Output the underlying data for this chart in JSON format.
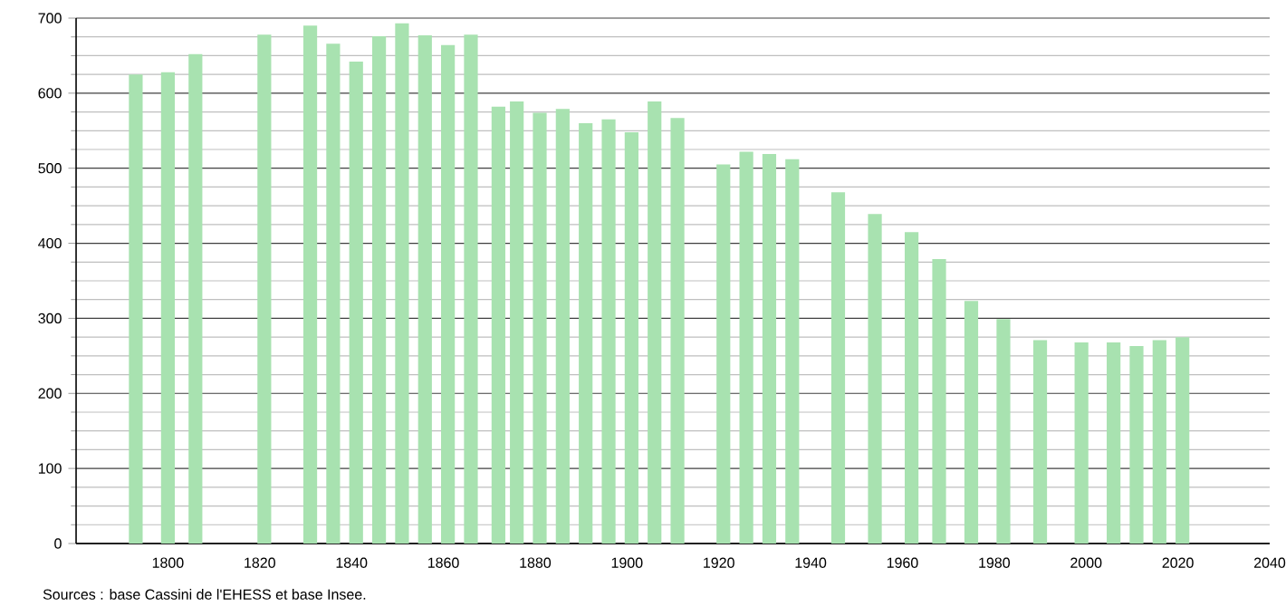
{
  "chart_data": {
    "type": "bar",
    "color": "#a8e2b0",
    "x": [
      1793,
      1800,
      1806,
      1821,
      1831,
      1836,
      1841,
      1846,
      1851,
      1856,
      1861,
      1866,
      1872,
      1876,
      1881,
      1886,
      1891,
      1896,
      1901,
      1906,
      1911,
      1921,
      1926,
      1931,
      1936,
      1946,
      1954,
      1962,
      1968,
      1975,
      1982,
      1990,
      1999,
      2006,
      2011,
      2016,
      2021
    ],
    "values": [
      625,
      628,
      652,
      678,
      690,
      666,
      642,
      676,
      693,
      677,
      664,
      678,
      582,
      589,
      574,
      579,
      560,
      565,
      548,
      589,
      567,
      505,
      522,
      519,
      512,
      468,
      439,
      415,
      379,
      323,
      299,
      271,
      268,
      268,
      263,
      271,
      275
    ],
    "xlim": [
      1780,
      2040
    ],
    "xticks": [
      1800,
      1820,
      1840,
      1860,
      1880,
      1900,
      1920,
      1940,
      1960,
      1980,
      2000,
      2020,
      2040
    ],
    "ylim": [
      0,
      700
    ],
    "yticks": [
      0,
      100,
      200,
      300,
      400,
      500,
      600,
      700
    ],
    "grid": "y",
    "annotations": [
      "Sources : base Cassini de l'EHESS et base Insee."
    ]
  }
}
